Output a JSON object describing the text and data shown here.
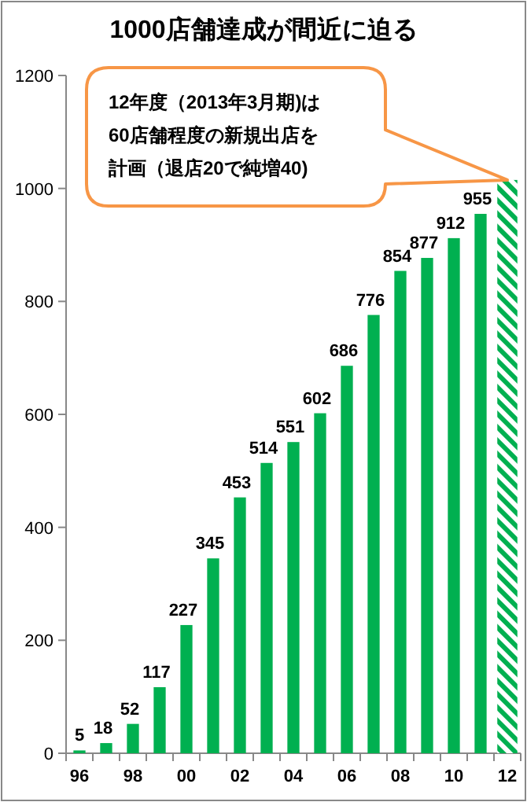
{
  "chart_data": {
    "type": "bar",
    "title": "1000店舗達成が間近に迫る",
    "categories": [
      "96",
      null,
      "98",
      null,
      "00",
      null,
      "02",
      null,
      "04",
      null,
      "06",
      null,
      "08",
      null,
      "10",
      null,
      "12"
    ],
    "series": [
      {
        "color": "#00b050",
        "values": [
          5,
          18,
          52,
          117,
          227,
          345,
          453,
          514,
          551,
          602,
          686,
          776,
          854,
          877,
          912,
          955,
          null
        ],
        "value_labels": [
          "5",
          "18",
          "52",
          "117",
          "227",
          "345",
          "453",
          "514",
          "551",
          "602",
          "686",
          "776",
          "854",
          "877",
          "912",
          "955",
          null
        ]
      },
      {
        "color": "#00b050",
        "values": [
          null,
          null,
          null,
          null,
          null,
          null,
          null,
          null,
          null,
          null,
          null,
          null,
          null,
          null,
          null,
          null,
          1015
        ]
      }
    ],
    "ylim": [
      0,
      1200
    ],
    "yticks": [
      0,
      200,
      400,
      600,
      800,
      1000,
      1200
    ],
    "grid": false,
    "annotations": [
      "12年度（2013年3月期)は60店舗程度の新規出店を計画（退店20で純増40)"
    ]
  }
}
